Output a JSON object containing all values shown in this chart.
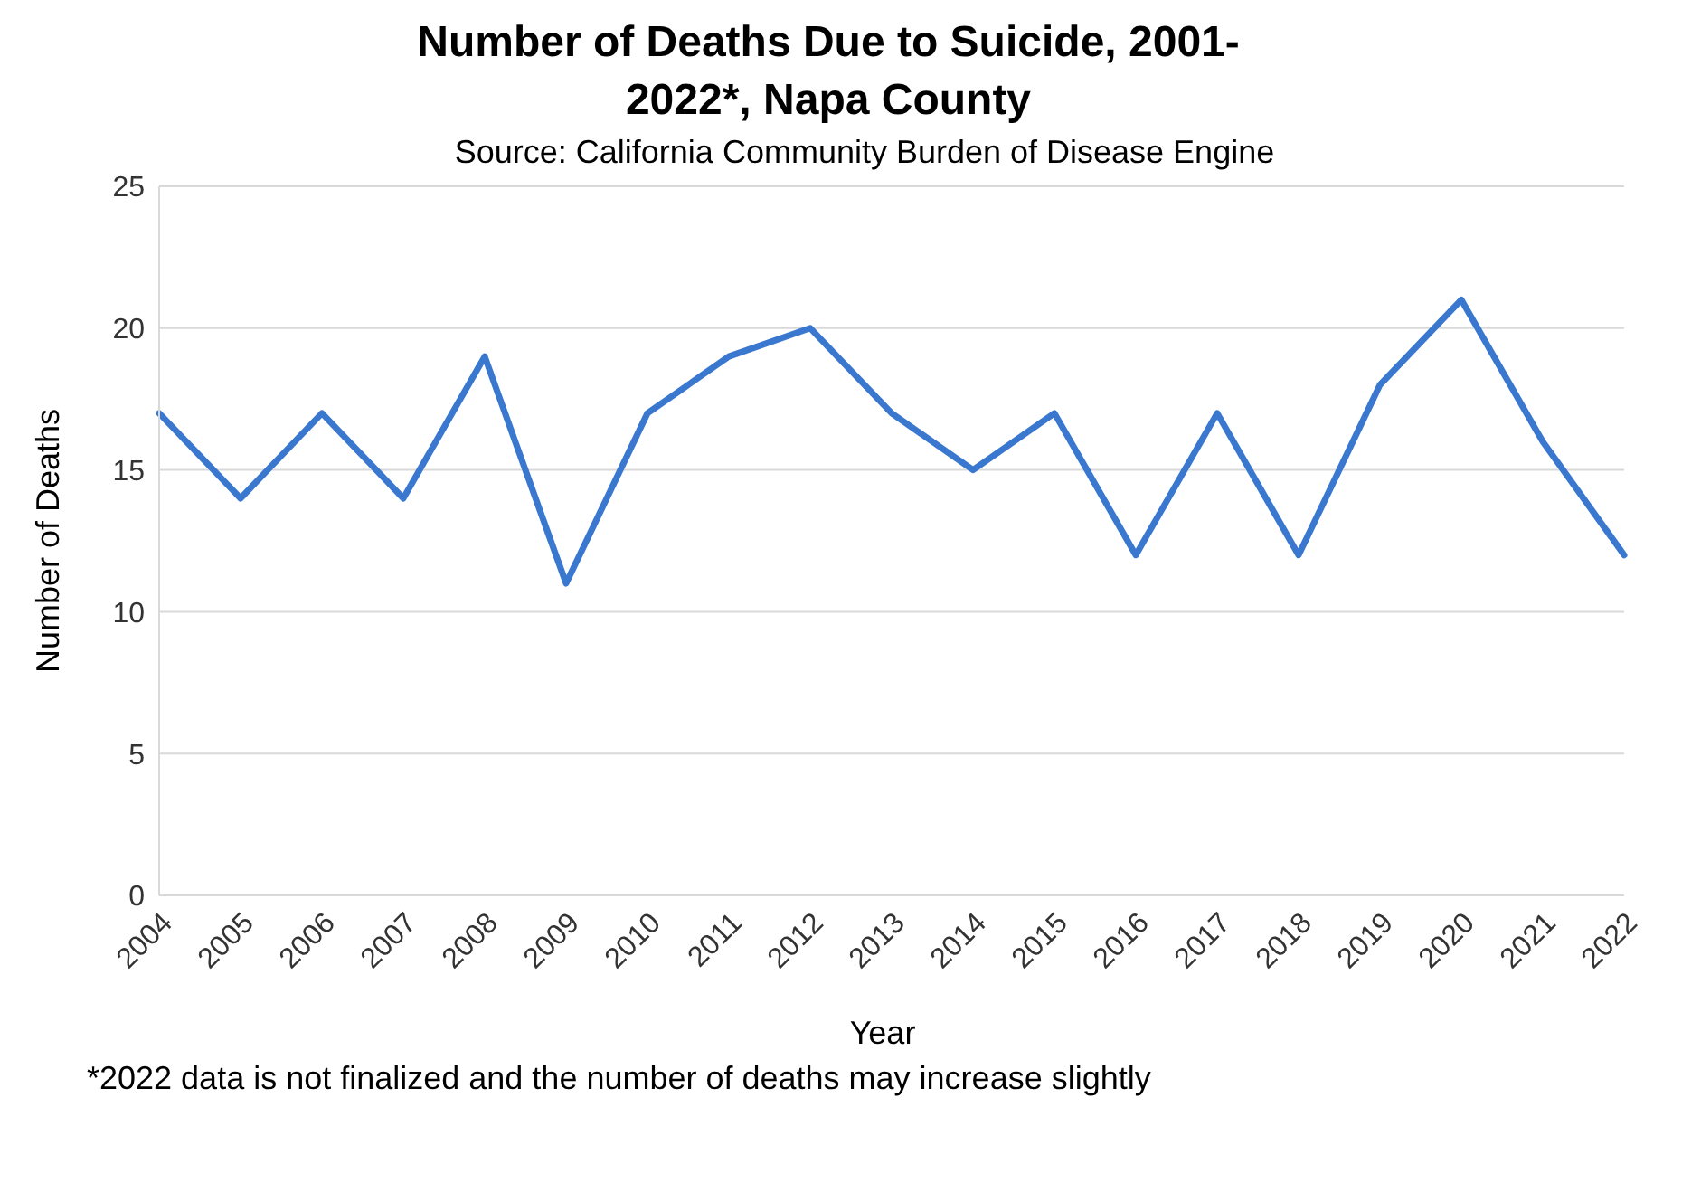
{
  "chart_data": {
    "type": "line",
    "title": "Number of Deaths Due to Suicide, 2001-2022*, Napa County",
    "subtitle": "Source: California Community Burden of Disease Engine",
    "xlabel": "Year",
    "ylabel": "Number of Deaths",
    "annotations": [
      "*2022 data is not finalized and the number of deaths may increase slightly"
    ],
    "categories": [
      "2004",
      "2005",
      "2006",
      "2007",
      "2008",
      "2009",
      "2010",
      "2011",
      "2012",
      "2013",
      "2014",
      "2015",
      "2016",
      "2017",
      "2018",
      "2019",
      "2020",
      "2021",
      "2022"
    ],
    "series": [
      {
        "color": "#3a78d0",
        "values": [
          17,
          14,
          17,
          14,
          19,
          11,
          17,
          19,
          20,
          17,
          15,
          17,
          12,
          17,
          12,
          18,
          21,
          16,
          12
        ]
      }
    ],
    "ylim": [
      0,
      25
    ],
    "yticks": [
      0,
      5,
      10,
      15,
      20,
      25
    ],
    "grid": "y",
    "marker": "none",
    "line_style": "solid"
  }
}
